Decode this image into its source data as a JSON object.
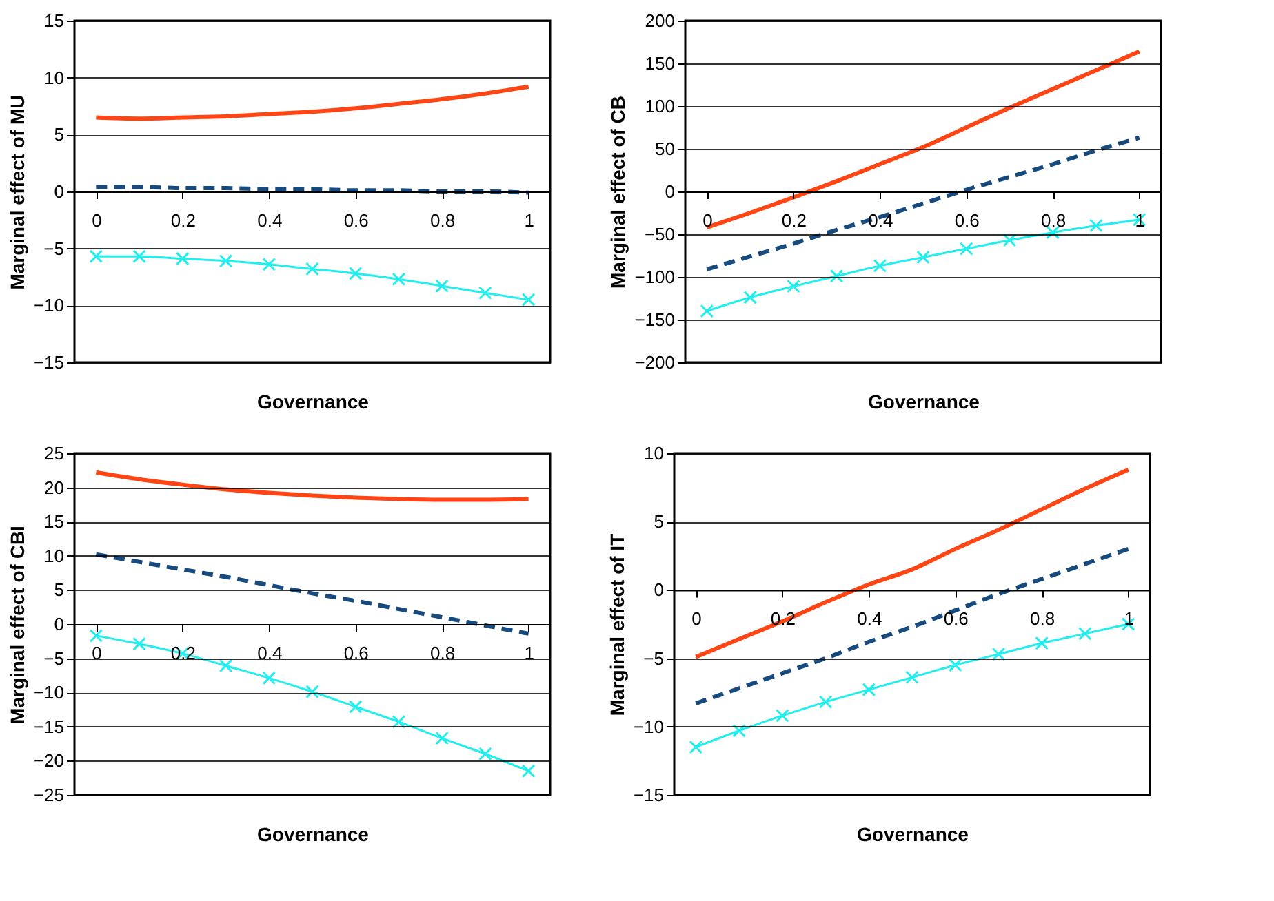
{
  "chart_data": [
    {
      "type": "line",
      "xlabel": "Governance",
      "ylabel": "Marginal effect of MU",
      "x": [
        0,
        0.1,
        0.2,
        0.3,
        0.4,
        0.5,
        0.6,
        0.7,
        0.8,
        0.9,
        1
      ],
      "xlim": [
        -0.05,
        1.05
      ],
      "xticks": [
        0,
        0.2,
        0.4,
        0.6,
        0.8,
        1
      ],
      "ylim": [
        -15,
        15
      ],
      "yticks": [
        -15,
        -10,
        -5,
        0,
        5,
        10,
        15
      ],
      "grid": "y",
      "series": [
        {
          "color": "#ff4513",
          "line_style": "solid",
          "marker": "none",
          "values": [
            6.5,
            6.4,
            6.5,
            6.6,
            6.8,
            7.0,
            7.3,
            7.7,
            8.1,
            8.6,
            9.2
          ]
        },
        {
          "color": "#174a7e",
          "line_style": "dashed",
          "marker": "none",
          "values": [
            0.4,
            0.4,
            0.3,
            0.3,
            0.2,
            0.2,
            0.1,
            0.1,
            0,
            0,
            -0.1
          ]
        },
        {
          "color": "#22eeee",
          "line_style": "solid",
          "marker": "cross",
          "values": [
            -5.7,
            -5.7,
            -5.9,
            -6.1,
            -6.4,
            -6.8,
            -7.2,
            -7.7,
            -8.3,
            -8.9,
            -9.5
          ]
        }
      ]
    },
    {
      "type": "line",
      "xlabel": "Governance",
      "ylabel": "Marginal effect of CB",
      "x": [
        0,
        0.1,
        0.2,
        0.3,
        0.4,
        0.5,
        0.6,
        0.7,
        0.8,
        0.9,
        1
      ],
      "xlim": [
        -0.05,
        1.05
      ],
      "xticks": [
        0,
        0.2,
        0.4,
        0.6,
        0.8,
        1
      ],
      "ylim": [
        -200,
        200
      ],
      "yticks": [
        -200,
        -150,
        -100,
        -50,
        0,
        50,
        100,
        150,
        200
      ],
      "grid": "y",
      "series": [
        {
          "color": "#ff4513",
          "line_style": "solid",
          "marker": "none",
          "values": [
            -42,
            -25,
            -7,
            12,
            32,
            52,
            75,
            98,
            120,
            142,
            164
          ]
        },
        {
          "color": "#174a7e",
          "line_style": "dashed",
          "marker": "none",
          "values": [
            -91,
            -76,
            -61,
            -45,
            -30,
            -14,
            2,
            17,
            32,
            48,
            63
          ]
        },
        {
          "color": "#22eeee",
          "line_style": "solid",
          "marker": "cross",
          "values": [
            -140,
            -124,
            -111,
            -99,
            -87,
            -77,
            -67,
            -57,
            -48,
            -40,
            -33
          ]
        }
      ]
    },
    {
      "type": "line",
      "xlabel": "Governance",
      "ylabel": "Marginal effect of CBI",
      "x": [
        0,
        0.1,
        0.2,
        0.3,
        0.4,
        0.5,
        0.6,
        0.7,
        0.8,
        0.9,
        1
      ],
      "xlim": [
        -0.05,
        1.05
      ],
      "xticks": [
        0,
        0.2,
        0.4,
        0.6,
        0.8,
        1
      ],
      "ylim": [
        -25,
        25
      ],
      "yticks": [
        -25,
        -20,
        -15,
        -10,
        -5,
        0,
        5,
        10,
        15,
        20,
        25
      ],
      "grid": "y",
      "series": [
        {
          "color": "#ff4513",
          "line_style": "solid",
          "marker": "none",
          "values": [
            22.2,
            21.2,
            20.4,
            19.7,
            19.2,
            18.8,
            18.5,
            18.3,
            18.2,
            18.2,
            18.3
          ]
        },
        {
          "color": "#174a7e",
          "line_style": "dashed",
          "marker": "none",
          "values": [
            10.2,
            9.1,
            8.0,
            6.9,
            5.7,
            4.5,
            3.4,
            2.2,
            1.0,
            -0.2,
            -1.4
          ]
        },
        {
          "color": "#22eeee",
          "line_style": "solid",
          "marker": "cross",
          "values": [
            -1.7,
            -2.9,
            -4.3,
            -6.1,
            -7.9,
            -9.9,
            -12.1,
            -14.3,
            -16.7,
            -19.0,
            -21.5
          ]
        }
      ]
    },
    {
      "type": "line",
      "xlabel": "Governance",
      "ylabel": "Marginal effect of IT",
      "x": [
        0,
        0.1,
        0.2,
        0.3,
        0.4,
        0.5,
        0.6,
        0.7,
        0.8,
        0.9,
        1
      ],
      "xlim": [
        -0.05,
        1.05
      ],
      "xticks": [
        0,
        0.2,
        0.4,
        0.6,
        0.8,
        1
      ],
      "ylim": [
        -15,
        10
      ],
      "yticks": [
        -15,
        -10,
        -5,
        0,
        5,
        10
      ],
      "grid": "y",
      "series": [
        {
          "color": "#ff4513",
          "line_style": "solid",
          "marker": "none",
          "values": [
            -4.9,
            -3.6,
            -2.3,
            -0.9,
            0.4,
            1.5,
            3.0,
            4.4,
            5.9,
            7.4,
            8.8
          ]
        },
        {
          "color": "#174a7e",
          "line_style": "dashed",
          "marker": "none",
          "values": [
            -8.3,
            -7.2,
            -6.1,
            -5.0,
            -3.8,
            -2.7,
            -1.5,
            -0.3,
            0.8,
            1.9,
            3.0
          ]
        },
        {
          "color": "#22eeee",
          "line_style": "solid",
          "marker": "cross",
          "values": [
            -11.5,
            -10.3,
            -9.2,
            -8.2,
            -7.3,
            -6.4,
            -5.5,
            -4.7,
            -3.9,
            -3.2,
            -2.5
          ]
        }
      ]
    }
  ]
}
